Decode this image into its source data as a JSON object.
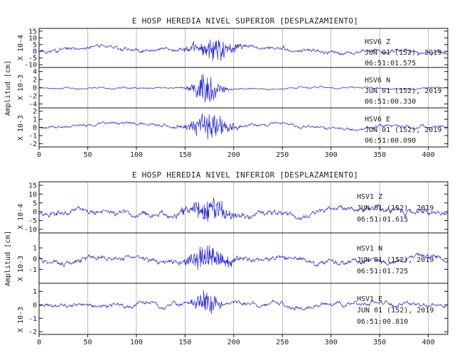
{
  "axis_label": "Amplitud [cm]",
  "colors": {
    "trace": "#1f1fe0",
    "frame": "#111111",
    "grid": "#7a7a7a",
    "text": "#222222"
  },
  "chart_data": [
    {
      "type": "line",
      "title": "E HOSP HEREDIA NIVEL SUPERIOR [DESPLAZAMIENTO]",
      "xlim": [
        0,
        420
      ],
      "xticks": [
        0,
        50,
        100,
        150,
        200,
        250,
        300,
        350,
        400
      ],
      "tracks": [
        {
          "scale_label": "X 10-4",
          "ylim": [
            -12,
            17
          ],
          "yticks": [
            -10,
            -5,
            0,
            5,
            10,
            15
          ],
          "station": "HSV6 Z",
          "date": "JUN 01 (152), 2019",
          "time": "06:51:01.575",
          "trace": {
            "baseline": 0.5,
            "background": 2.6,
            "burst_center": 180,
            "burst_width": 22,
            "burst_amplitude": 7.5,
            "seed": 11
          }
        },
        {
          "scale_label": "X 10-3",
          "ylim": [
            -5,
            5
          ],
          "yticks": [
            -4,
            -2,
            0,
            2,
            4
          ],
          "station": "HSV6 N",
          "date": "JUN 01 (152), 2019",
          "time": "06:51:00.330",
          "trace": {
            "baseline": 0.0,
            "background": 0.35,
            "burst_center": 172,
            "burst_width": 14,
            "burst_amplitude": 3.6,
            "seed": 23
          }
        },
        {
          "scale_label": "X 10-3",
          "ylim": [
            -2.4,
            2.4
          ],
          "yticks": [
            -2,
            -1,
            0,
            1,
            2
          ],
          "station": "HSV6 E",
          "date": "JUN 01 (152), 2019",
          "time": "06:51:00.090",
          "trace": {
            "baseline": 0.1,
            "background": 0.35,
            "burst_center": 175,
            "burst_width": 20,
            "burst_amplitude": 1.6,
            "seed": 37
          }
        }
      ]
    },
    {
      "type": "line",
      "title": "E HOSP HEREDIA NIVEL INFERIOR [DESPLAZAMIENTO]",
      "xlim": [
        0,
        420
      ],
      "xticks": [
        0,
        50,
        100,
        150,
        200,
        250,
        300,
        350,
        400
      ],
      "tracks": [
        {
          "scale_label": "X 10-4",
          "ylim": [
            -12,
            17
          ],
          "yticks": [
            -10,
            -5,
            0,
            5,
            10,
            15
          ],
          "station": "HSV1 Z",
          "date": "JUN 01 (152), 2019",
          "time": "06:51:01.615",
          "trace": {
            "baseline": 0.5,
            "background": 3.2,
            "burst_center": 175,
            "burst_width": 24,
            "burst_amplitude": 6.0,
            "seed": 53
          }
        },
        {
          "scale_label": "X 10-3",
          "ylim": [
            -2.3,
            2.4
          ],
          "yticks": [
            -1,
            0,
            1
          ],
          "station": "HSV1 N",
          "date": "JUN 01 (152), 2019",
          "time": "06:51:01.725",
          "trace": {
            "baseline": 0.0,
            "background": 0.45,
            "burst_center": 175,
            "burst_width": 22,
            "burst_amplitude": 1.1,
            "seed": 71
          }
        },
        {
          "scale_label": "X 10-3",
          "ylim": [
            -2.2,
            1.6
          ],
          "yticks": [
            -2,
            -1,
            0,
            1
          ],
          "station": "HSV1 E",
          "date": "JUN 01 (152), 2019",
          "time": "06:51:00.810",
          "trace": {
            "baseline": 0.0,
            "background": 0.3,
            "burst_center": 172,
            "burst_width": 12,
            "burst_amplitude": 0.9,
            "seed": 89
          }
        }
      ]
    }
  ]
}
